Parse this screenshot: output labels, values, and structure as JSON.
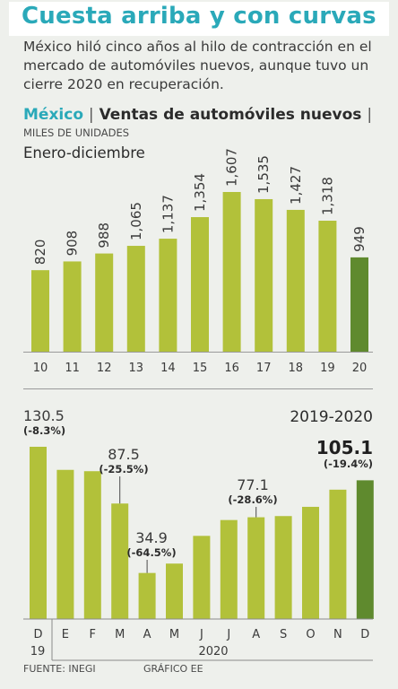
{
  "headline": "Cuesta arriba y con curvas",
  "subtitle": "México hiló cinco años al hilo de contracción en el mercado de automóviles nuevos, aunque tuvo un cierre 2020 en recuperación.",
  "section": {
    "country": "México",
    "separator": "|",
    "topic": "Ventas de automóviles nuevos",
    "separator2": "|"
  },
  "units": "MILES DE UNIDADES",
  "colors": {
    "bar": "#b2c13a",
    "highlight": "#5f8a2e",
    "text": "#3a3a3a"
  },
  "chart_data": [
    {
      "type": "bar",
      "title": "Enero-diciembre",
      "categories": [
        "10",
        "11",
        "12",
        "13",
        "14",
        "15",
        "16",
        "17",
        "18",
        "19",
        "20"
      ],
      "values": [
        820,
        908,
        988,
        1065,
        1137,
        1354,
        1607,
        1535,
        1427,
        1318,
        949
      ],
      "value_labels": [
        "820",
        "908",
        "988",
        "1,065",
        "1,137",
        "1,354",
        "1,607",
        "1,535",
        "1,427",
        "1,318",
        "949"
      ],
      "highlight_index": 10,
      "ylabel": "MILES DE UNIDADES"
    },
    {
      "type": "bar",
      "title": "2019-2020",
      "categories": [
        "D",
        "E",
        "F",
        "M",
        "A",
        "M",
        "J",
        "J",
        "A",
        "S",
        "O",
        "N",
        "D"
      ],
      "year_labels": [
        "19",
        "2020"
      ],
      "values": [
        130.5,
        113,
        112,
        87.5,
        34.9,
        42,
        63,
        75,
        77.1,
        78,
        85,
        98,
        105.1
      ],
      "highlight_index": 12,
      "annotations": [
        {
          "index": 0,
          "value": "130.5",
          "change": "(-8.3%)"
        },
        {
          "index": 3,
          "value": "87.5",
          "change": "(-25.5%)"
        },
        {
          "index": 4,
          "value": "34.9",
          "change": "(-64.5%)"
        },
        {
          "index": 8,
          "value": "77.1",
          "change": "(-28.6%)"
        },
        {
          "index": 12,
          "value": "105.1",
          "change": "(-19.4%)"
        }
      ]
    }
  ],
  "footer": {
    "source": "FUENTE: INEGI",
    "credit": "GRÁFICO EE"
  }
}
